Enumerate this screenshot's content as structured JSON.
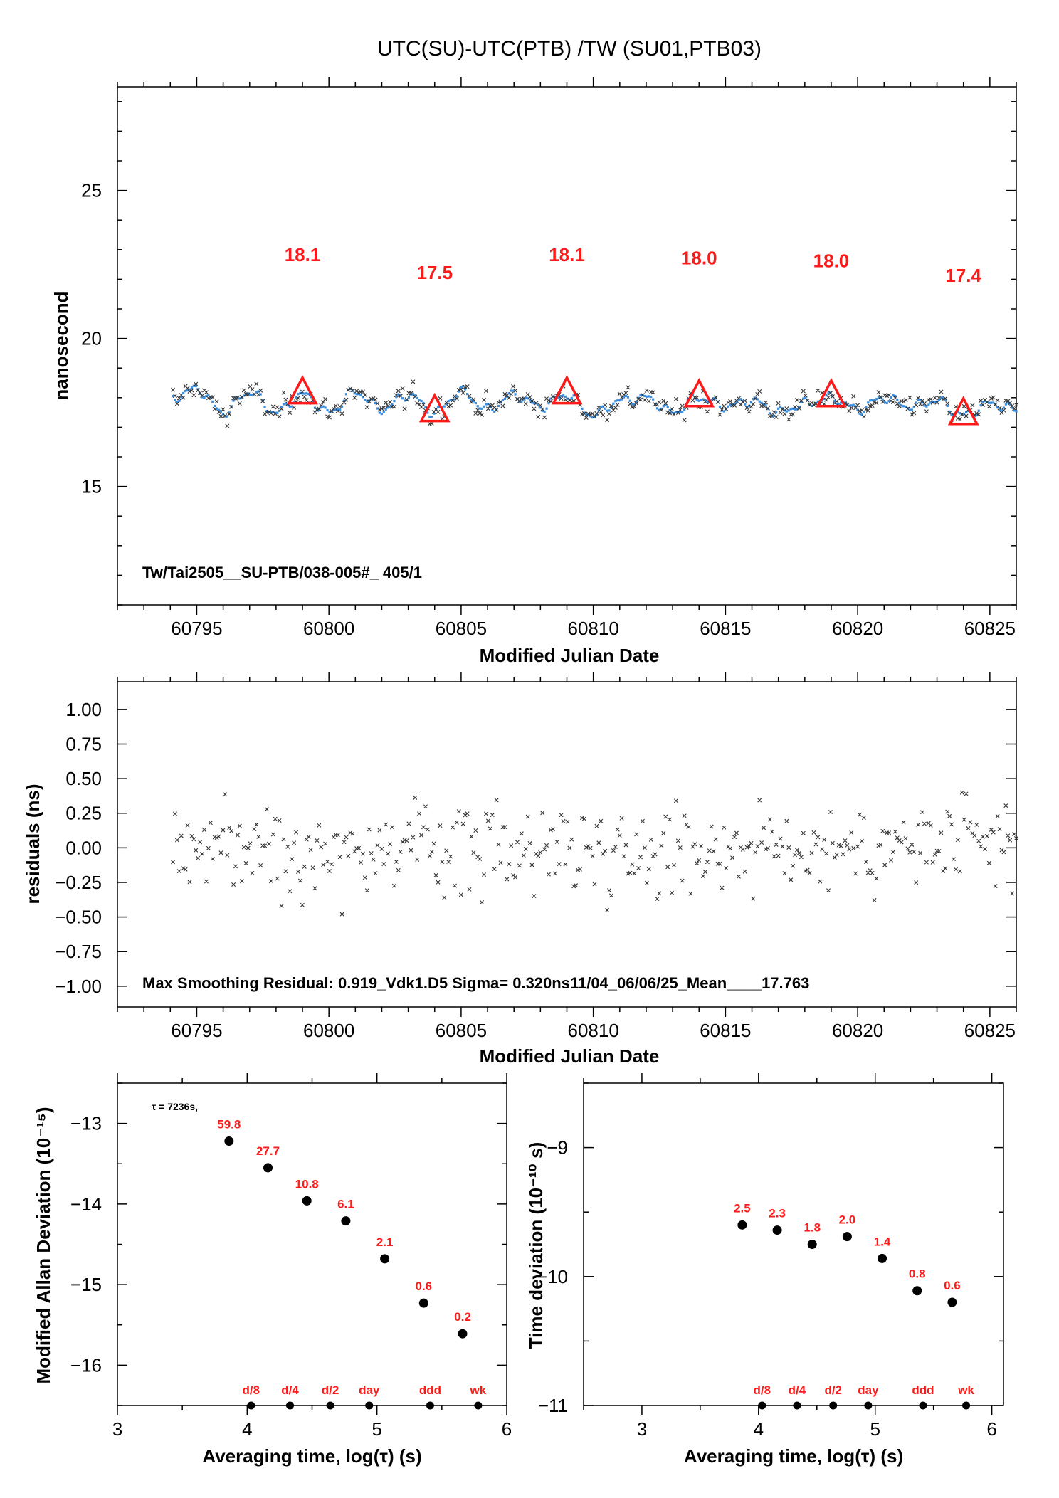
{
  "title": "UTC(SU)-UTC(PTB)  /TW  (SU01,PTB03)",
  "colors": {
    "triangle": "#ff1a1a",
    "smoothed_points": "#3a8fe0",
    "raw_points": "#333333",
    "red_labels": "#ff1a1a"
  },
  "chart_data": [
    {
      "name": "time-series",
      "type": "scatter",
      "xlabel": "Modified Julian Date",
      "ylabel": "nanosecond",
      "xlim": [
        60792.0,
        60826.0
      ],
      "ylim": [
        11.0,
        28.5
      ],
      "xticks": [
        60795,
        60800,
        60805,
        60810,
        60815,
        60820,
        60825
      ],
      "yticks": [
        15,
        20,
        25
      ],
      "annotation": "Tw/Tai2505__SU-PTB/038-005#_  405/1",
      "x_start": 60794.1,
      "x_end": 60826.0,
      "triangles": [
        {
          "x": 60799.0,
          "y": 18.1,
          "label": "18.1",
          "label_y": 22.8
        },
        {
          "x": 60804.0,
          "y": 17.5,
          "label": "17.5",
          "label_y": 22.2
        },
        {
          "x": 60809.0,
          "y": 18.1,
          "label": "18.1",
          "label_y": 22.8
        },
        {
          "x": 60814.0,
          "y": 18.0,
          "label": "18.0",
          "label_y": 22.7
        },
        {
          "x": 60819.0,
          "y": 18.0,
          "label": "18.0",
          "label_y": 22.6
        },
        {
          "x": 60824.0,
          "y": 17.4,
          "label": "17.4",
          "label_y": 22.1
        }
      ],
      "trend_anchors": [
        [
          60794.1,
          18.0
        ],
        [
          60795.0,
          18.3
        ],
        [
          60796.0,
          17.5
        ],
        [
          60797.0,
          18.2
        ],
        [
          60798.0,
          17.5
        ],
        [
          60799.0,
          18.1
        ],
        [
          60800.0,
          17.5
        ],
        [
          60801.0,
          18.2
        ],
        [
          60802.0,
          17.6
        ],
        [
          60803.0,
          18.1
        ],
        [
          60804.0,
          17.5
        ],
        [
          60805.0,
          18.2
        ],
        [
          60806.0,
          17.6
        ],
        [
          60807.0,
          18.1
        ],
        [
          60808.0,
          17.7
        ],
        [
          60809.0,
          18.1
        ],
        [
          60810.0,
          17.4
        ],
        [
          60811.0,
          17.9
        ],
        [
          60812.0,
          18.0
        ],
        [
          60813.0,
          17.5
        ],
        [
          60814.0,
          18.0
        ],
        [
          60815.0,
          17.7
        ],
        [
          60816.0,
          17.9
        ],
        [
          60817.0,
          17.5
        ],
        [
          60818.0,
          17.8
        ],
        [
          60819.0,
          18.0
        ],
        [
          60820.0,
          17.6
        ],
        [
          60821.0,
          18.0
        ],
        [
          60822.0,
          17.7
        ],
        [
          60823.0,
          17.9
        ],
        [
          60824.0,
          17.4
        ],
        [
          60825.0,
          17.8
        ],
        [
          60826.0,
          17.6
        ]
      ],
      "raw_spread_ns": 0.32
    },
    {
      "name": "residuals",
      "type": "scatter",
      "xlabel": "Modified Julian Date",
      "ylabel": "residuals (ns)",
      "xlim": [
        60792.0,
        60826.0
      ],
      "ylim": [
        -1.15,
        1.2
      ],
      "xticks": [
        60795,
        60800,
        60805,
        60810,
        60815,
        60820,
        60825
      ],
      "yticks": [
        1.0,
        0.75,
        0.5,
        0.25,
        0.0,
        -0.25,
        -0.5,
        -0.75,
        -1.0
      ],
      "ytick_labels": [
        "1.00",
        "0.75",
        "0.50",
        "0.25",
        "0.00",
        "−0.25",
        "−0.50",
        "−0.75",
        "−1.00"
      ],
      "annotation": "Max Smoothing Residual: 0.919_Vdk1.D5  Sigma= 0.320ns11/04_06/06/25_Mean____17.763",
      "n_points": 405,
      "sigma": 0.32,
      "max": 0.919
    },
    {
      "name": "mdev",
      "type": "scatter",
      "xlabel": "Averaging time, log(τ) (s)",
      "ylabel": "Modified Allan Deviation (10⁻¹⁵)",
      "xlim": [
        3,
        6
      ],
      "ylim": [
        -16.5,
        -12.5
      ],
      "xticks": [
        3,
        4,
        5,
        6
      ],
      "yticks": [
        -13,
        -14,
        -15,
        -16
      ],
      "ytick_labels": [
        "−13",
        "−14",
        "−15",
        "−16"
      ],
      "tau_note": "τ = 7236s,",
      "points": [
        {
          "x": 3.86,
          "y": -13.22,
          "label": "59.8"
        },
        {
          "x": 4.16,
          "y": -13.55,
          "label": "27.7"
        },
        {
          "x": 4.46,
          "y": -13.96,
          "label": "10.8"
        },
        {
          "x": 4.76,
          "y": -14.21,
          "label": "6.1"
        },
        {
          "x": 5.06,
          "y": -14.68,
          "label": "2.1"
        },
        {
          "x": 5.36,
          "y": -15.23,
          "label": "0.6"
        },
        {
          "x": 5.66,
          "y": -15.61,
          "label": "0.2"
        }
      ],
      "markers": [
        {
          "x": 4.03,
          "label": "d/8"
        },
        {
          "x": 4.33,
          "label": "d/4"
        },
        {
          "x": 4.64,
          "label": "d/2"
        },
        {
          "x": 4.94,
          "label": "day"
        },
        {
          "x": 5.41,
          "label": "ddd"
        },
        {
          "x": 5.78,
          "label": "wk"
        }
      ]
    },
    {
      "name": "tdev",
      "type": "scatter",
      "xlabel": "Averaging time, log(τ) (s)",
      "ylabel": "Time deviation (10⁻¹⁰ s)",
      "xlim": [
        2.5,
        6.1
      ],
      "ylim": [
        -11.0,
        -8.5
      ],
      "xticks": [
        3,
        4,
        5,
        6
      ],
      "yticks": [
        -9,
        -10,
        -11
      ],
      "ytick_labels": [
        "−9",
        "−10",
        "−11"
      ],
      "points": [
        {
          "x": 3.86,
          "y": -9.6,
          "label": "2.5"
        },
        {
          "x": 4.16,
          "y": -9.64,
          "label": "2.3"
        },
        {
          "x": 4.46,
          "y": -9.75,
          "label": "1.8"
        },
        {
          "x": 4.76,
          "y": -9.69,
          "label": "2.0"
        },
        {
          "x": 5.06,
          "y": -9.86,
          "label": "1.4"
        },
        {
          "x": 5.36,
          "y": -10.11,
          "label": "0.8"
        },
        {
          "x": 5.66,
          "y": -10.2,
          "label": "0.6"
        }
      ],
      "markers": [
        {
          "x": 4.03,
          "label": "d/8"
        },
        {
          "x": 4.33,
          "label": "d/4"
        },
        {
          "x": 4.64,
          "label": "d/2"
        },
        {
          "x": 4.94,
          "label": "day"
        },
        {
          "x": 5.41,
          "label": "ddd"
        },
        {
          "x": 5.78,
          "label": "wk"
        }
      ]
    }
  ]
}
